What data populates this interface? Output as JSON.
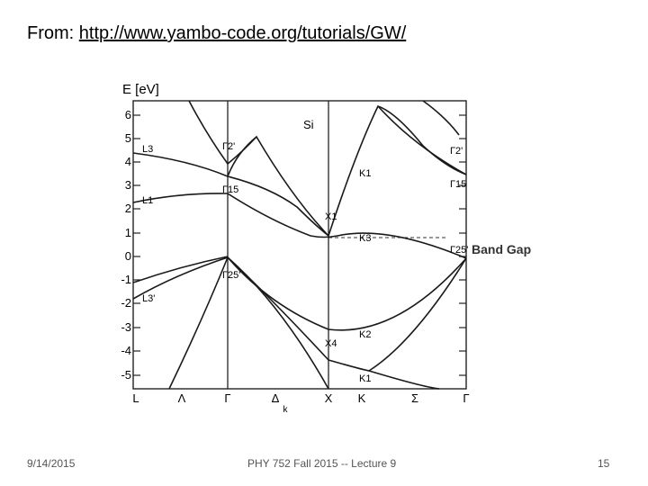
{
  "header": {
    "prefix": "From: ",
    "link_text": "http://www.yambo-code.org/tutorials/GW/"
  },
  "figure": {
    "y_axis_label": "E [eV]",
    "material": "Si",
    "y_ticks": [
      "6",
      "5",
      "4",
      "3",
      "2",
      "1",
      "0",
      "-1",
      "-2",
      "-3",
      "-4",
      "-5"
    ],
    "x_ticks": [
      "L",
      "Λ",
      "Γ",
      "Δ",
      "k",
      "X",
      "K",
      "Σ",
      "Γ"
    ],
    "point_labels": [
      "L3",
      "L1",
      "L3'",
      "Γ2'",
      "Γ15",
      "Γ25'",
      "X1",
      "X4",
      "K1",
      "K3",
      "K2",
      "K1",
      "Γ2'",
      "Γ15",
      "Γ25'"
    ],
    "annotation": "Band Gap"
  },
  "footer": {
    "date": "9/14/2015",
    "course": "PHY 752  Fall 2015 -- Lecture 9",
    "page": "15"
  }
}
